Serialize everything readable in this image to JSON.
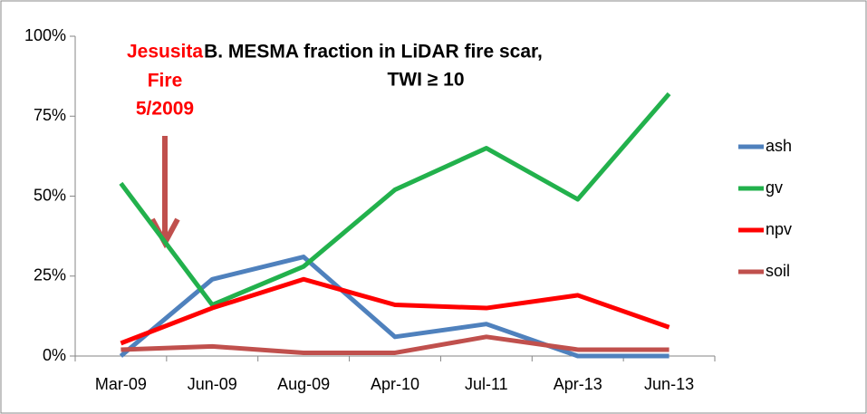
{
  "chart_data": {
    "type": "line",
    "title": [
      "B. MESMA fraction in LiDAR fire scar,",
      "TWI ≥ 10"
    ],
    "annotation": [
      "Jesusita",
      "Fire",
      "5/2009"
    ],
    "categories": [
      "Mar-09",
      "Jun-09",
      "Aug-09",
      "Apr-10",
      "Jul-11",
      "Apr-13",
      "Jun-13"
    ],
    "series": [
      {
        "name": "ash",
        "color": "#4f81bd",
        "values": [
          0,
          24,
          31,
          6,
          10,
          0,
          0
        ]
      },
      {
        "name": "gv",
        "color": "#22b14c",
        "values": [
          54,
          16,
          28,
          52,
          65,
          49,
          82
        ]
      },
      {
        "name": "npv",
        "color": "#ff0000",
        "values": [
          4,
          15,
          24,
          16,
          15,
          19,
          9
        ]
      },
      {
        "name": "soil",
        "color": "#c0504d",
        "values": [
          2,
          3,
          1,
          1,
          6,
          2,
          2
        ]
      }
    ],
    "ylim": [
      0,
      100
    ],
    "yticks": [
      {
        "value": 0,
        "label": "0%"
      },
      {
        "value": 25,
        "label": "25%"
      },
      {
        "value": 50,
        "label": "50%"
      },
      {
        "value": 75,
        "label": "75%"
      },
      {
        "value": 100,
        "label": "100%"
      }
    ],
    "legend": "right"
  }
}
